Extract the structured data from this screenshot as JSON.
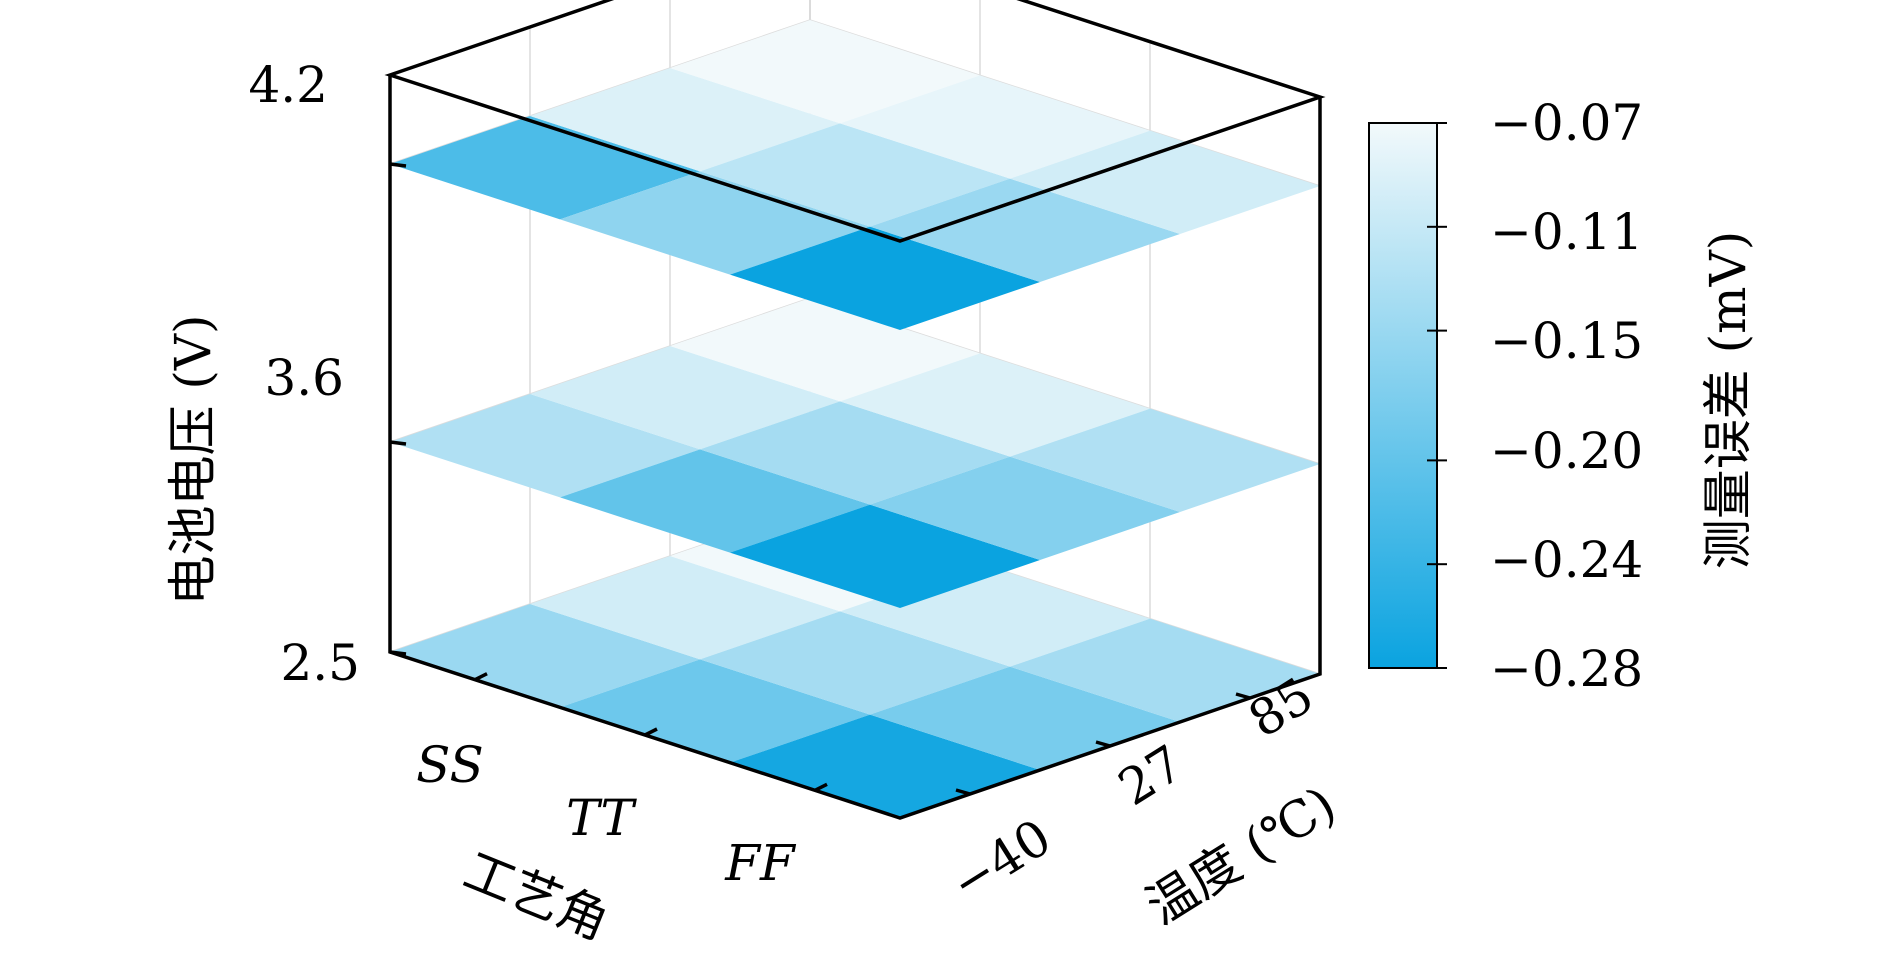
{
  "chart_data": {
    "type": "heatmap",
    "title": "",
    "z_axis": {
      "label": "电池电压 (V)",
      "levels": [
        "2.5",
        "3.6",
        "4.2"
      ]
    },
    "x_axis": {
      "label": "工艺角",
      "categories": [
        "SS",
        "TT",
        "FF"
      ]
    },
    "y_axis": {
      "label": "温度 (℃)",
      "categories": [
        "−40",
        "27",
        "85"
      ]
    },
    "colorbar": {
      "label": "测量误差 (mV)",
      "ticks": [
        "−0.07",
        "−0.11",
        "−0.15",
        "−0.20",
        "−0.24",
        "−0.28"
      ],
      "range": [
        -0.28,
        -0.07
      ],
      "color_min": "#0aa3e0",
      "color_max": "#f2f9fb"
    },
    "layers": [
      {
        "voltage": "2.5",
        "values": [
          [
            -0.15,
            -0.1,
            -0.07
          ],
          [
            -0.19,
            -0.14,
            -0.1
          ],
          [
            -0.27,
            -0.18,
            -0.14
          ]
        ]
      },
      {
        "voltage": "3.6",
        "values": [
          [
            -0.13,
            -0.1,
            -0.07
          ],
          [
            -0.2,
            -0.14,
            -0.09
          ],
          [
            -0.28,
            -0.17,
            -0.13
          ]
        ]
      },
      {
        "voltage": "4.2",
        "values": [
          [
            -0.22,
            -0.09,
            -0.07
          ],
          [
            -0.16,
            -0.12,
            -0.08
          ],
          [
            -0.28,
            -0.15,
            -0.1
          ]
        ]
      }
    ]
  }
}
